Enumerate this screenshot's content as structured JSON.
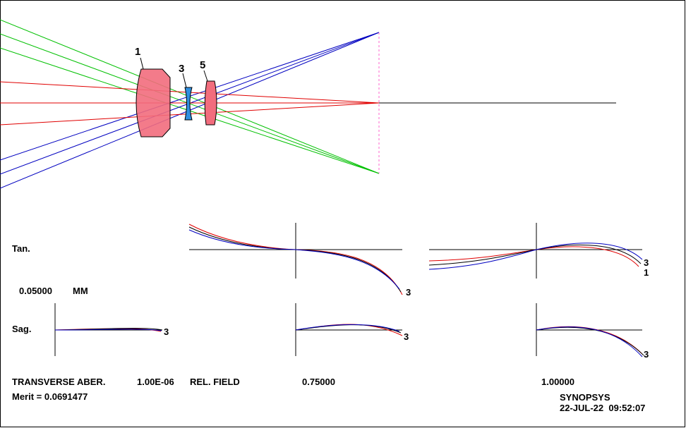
{
  "lens": {
    "labels": [
      "1",
      "3",
      "5"
    ]
  },
  "plots": {
    "rows": [
      "Tan.",
      "Sag."
    ],
    "scale": "0.05000",
    "unit": "MM",
    "curve_labels": {
      "tan_field_0": "3",
      "tan_field_1": [
        "3",
        "1"
      ],
      "sag_axis": "3",
      "sag_field_0": "3",
      "sag_field_1": "3"
    }
  },
  "footer": {
    "aberration_type": "TRANSVERSE ABER.",
    "wavelength": "1.00E-06",
    "rel_field_label": "REL. FIELD",
    "fields": [
      "0.75000",
      "1.00000"
    ],
    "merit": "Merit = 0.0691477",
    "program": "SYNOPSYS",
    "timestamp": "22-JUL-22  09:52:07"
  }
}
